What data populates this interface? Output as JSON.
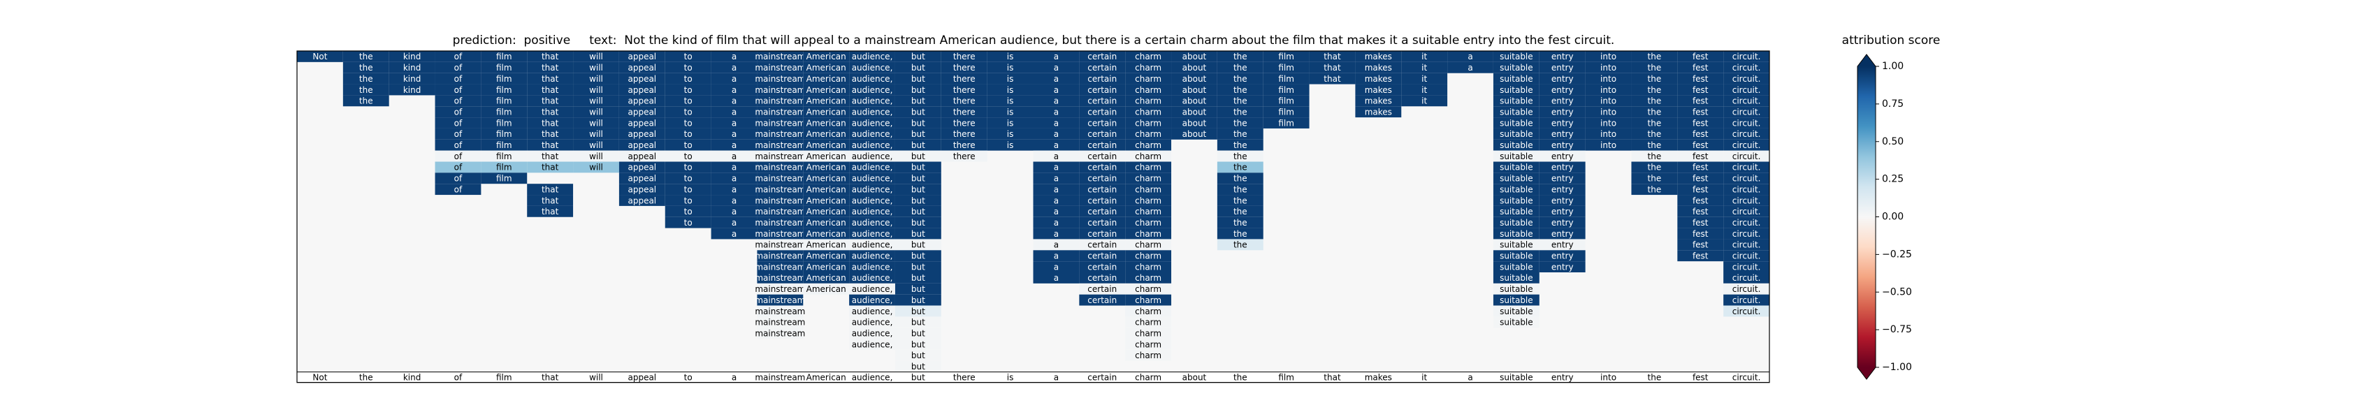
{
  "chart_data": {
    "type": "heatmap",
    "title": "prediction:  positive     text:  Not the kind of film that will appeal to a mainstream American audience, but there is a certain charm about the film that makes it a suitable entry into the fest circuit.",
    "tokens": [
      "Not",
      "the",
      "kind",
      "of",
      "film",
      "that",
      "will",
      "appeal",
      "to",
      "a",
      "mainstream",
      "American",
      "audience,",
      "but",
      "there",
      "is",
      "a",
      "certain",
      "charm",
      "about",
      "the",
      "film",
      "that",
      "makes",
      "it",
      "a",
      "suitable",
      "entry",
      "into",
      "the",
      "fest",
      "circuit."
    ],
    "z": [
      [
        0.95,
        0.95,
        0.95,
        0.95,
        0.95,
        0.95,
        0.95,
        0.95,
        0.95,
        0.95,
        0.95,
        0.95,
        0.95,
        0.95,
        0.95,
        0.95,
        0.95,
        0.95,
        0.95,
        0.95,
        0.95,
        0.95,
        0.95,
        0.95,
        0.95,
        0.95,
        0.95,
        0.95,
        0.95,
        0.95,
        0.95,
        0.95
      ],
      [
        null,
        0.95,
        0.95,
        0.95,
        0.95,
        0.95,
        0.95,
        0.95,
        0.95,
        0.95,
        0.95,
        0.95,
        0.95,
        0.95,
        0.95,
        0.95,
        0.95,
        0.95,
        0.95,
        0.95,
        0.95,
        0.95,
        0.95,
        0.95,
        0.95,
        0.95,
        0.95,
        0.95,
        0.95,
        0.95,
        0.95,
        0.95
      ],
      [
        null,
        0.95,
        0.95,
        0.95,
        0.95,
        0.95,
        0.95,
        0.95,
        0.95,
        0.95,
        0.95,
        0.95,
        0.95,
        0.95,
        0.95,
        0.95,
        0.95,
        0.95,
        0.95,
        0.95,
        0.95,
        0.95,
        0.95,
        0.95,
        0.95,
        null,
        0.95,
        0.95,
        0.95,
        0.95,
        0.95,
        0.95
      ],
      [
        null,
        0.95,
        0.95,
        0.95,
        0.95,
        0.95,
        0.95,
        0.95,
        0.95,
        0.95,
        0.95,
        0.95,
        0.95,
        0.95,
        0.95,
        0.95,
        0.95,
        0.95,
        0.95,
        0.95,
        0.95,
        0.95,
        null,
        0.95,
        0.95,
        null,
        0.95,
        0.95,
        0.95,
        0.95,
        0.95,
        0.95
      ],
      [
        null,
        0.95,
        null,
        0.95,
        0.95,
        0.95,
        0.95,
        0.95,
        0.95,
        0.95,
        0.95,
        0.95,
        0.95,
        0.95,
        0.95,
        0.95,
        0.95,
        0.95,
        0.95,
        0.95,
        0.95,
        0.95,
        null,
        0.95,
        0.95,
        null,
        0.95,
        0.95,
        0.95,
        0.95,
        0.95,
        0.95
      ],
      [
        null,
        null,
        null,
        0.95,
        0.95,
        0.95,
        0.95,
        0.95,
        0.95,
        0.95,
        0.95,
        0.95,
        0.95,
        0.95,
        0.95,
        0.95,
        0.95,
        0.95,
        0.95,
        0.95,
        0.95,
        0.95,
        null,
        0.95,
        null,
        null,
        0.95,
        0.95,
        0.95,
        0.95,
        0.95,
        0.95
      ],
      [
        null,
        null,
        null,
        0.95,
        0.95,
        0.95,
        0.95,
        0.95,
        0.95,
        0.95,
        0.95,
        0.95,
        0.95,
        0.95,
        0.95,
        0.95,
        0.95,
        0.95,
        0.95,
        0.95,
        0.95,
        0.95,
        null,
        null,
        null,
        null,
        0.95,
        0.95,
        0.95,
        0.95,
        0.95,
        0.95
      ],
      [
        null,
        null,
        null,
        0.95,
        0.95,
        0.95,
        0.95,
        0.95,
        0.95,
        0.95,
        0.95,
        0.95,
        0.95,
        0.95,
        0.95,
        0.95,
        0.95,
        0.95,
        0.95,
        0.95,
        0.95,
        null,
        null,
        null,
        null,
        null,
        0.95,
        0.95,
        0.95,
        0.95,
        0.95,
        0.95
      ],
      [
        null,
        null,
        null,
        0.95,
        0.95,
        0.95,
        0.95,
        0.95,
        0.95,
        0.95,
        0.95,
        0.95,
        0.95,
        0.95,
        0.95,
        0.95,
        0.95,
        0.95,
        0.95,
        null,
        0.95,
        null,
        null,
        null,
        null,
        null,
        0.95,
        0.95,
        0.95,
        0.95,
        0.95,
        0.95
      ],
      [
        null,
        null,
        null,
        0.03,
        0.03,
        0.03,
        0.03,
        0.03,
        0.03,
        0.03,
        0.03,
        0.03,
        0.03,
        0.03,
        0.03,
        null,
        0.03,
        0.03,
        0.03,
        null,
        0.03,
        null,
        null,
        null,
        null,
        null,
        0.03,
        0.03,
        null,
        0.03,
        0.03,
        0.03
      ],
      [
        null,
        null,
        null,
        0.4,
        0.4,
        0.4,
        0.4,
        0.95,
        0.95,
        0.95,
        0.95,
        0.95,
        0.95,
        0.95,
        null,
        null,
        0.95,
        0.95,
        0.95,
        null,
        0.4,
        null,
        null,
        null,
        null,
        null,
        0.95,
        0.95,
        null,
        0.95,
        0.95,
        0.95
      ],
      [
        null,
        null,
        null,
        0.95,
        0.95,
        null,
        null,
        0.95,
        0.95,
        0.95,
        0.95,
        0.95,
        0.95,
        0.95,
        null,
        null,
        0.95,
        0.95,
        0.95,
        null,
        0.95,
        null,
        null,
        null,
        null,
        null,
        0.95,
        0.95,
        null,
        0.95,
        0.95,
        0.95
      ],
      [
        null,
        null,
        null,
        0.95,
        null,
        0.95,
        null,
        0.95,
        0.95,
        0.95,
        0.95,
        0.95,
        0.95,
        0.95,
        null,
        null,
        0.95,
        0.95,
        0.95,
        null,
        0.95,
        null,
        null,
        null,
        null,
        null,
        0.95,
        0.95,
        null,
        0.95,
        0.95,
        0.95
      ],
      [
        null,
        null,
        null,
        null,
        null,
        0.95,
        null,
        0.95,
        0.95,
        0.95,
        0.95,
        0.95,
        0.95,
        0.95,
        null,
        null,
        0.95,
        0.95,
        0.95,
        null,
        0.95,
        null,
        null,
        null,
        null,
        null,
        0.95,
        0.95,
        null,
        null,
        0.95,
        0.95
      ],
      [
        null,
        null,
        null,
        null,
        null,
        0.95,
        null,
        null,
        0.95,
        0.95,
        0.95,
        0.95,
        0.95,
        0.95,
        null,
        null,
        0.95,
        0.95,
        0.95,
        null,
        0.95,
        null,
        null,
        null,
        null,
        null,
        0.95,
        0.95,
        null,
        null,
        0.95,
        0.95
      ],
      [
        null,
        null,
        null,
        null,
        null,
        null,
        null,
        null,
        0.95,
        0.95,
        0.95,
        0.95,
        0.95,
        0.95,
        null,
        null,
        0.95,
        0.95,
        0.95,
        null,
        0.95,
        null,
        null,
        null,
        null,
        null,
        0.95,
        0.95,
        null,
        null,
        0.95,
        0.95
      ],
      [
        null,
        null,
        null,
        null,
        null,
        null,
        null,
        null,
        null,
        0.95,
        0.95,
        0.95,
        0.95,
        0.95,
        null,
        null,
        0.95,
        0.95,
        0.95,
        null,
        0.95,
        null,
        null,
        null,
        null,
        null,
        0.95,
        0.95,
        null,
        null,
        0.95,
        0.95
      ],
      [
        null,
        null,
        null,
        null,
        null,
        null,
        null,
        null,
        null,
        null,
        0.03,
        0.03,
        0.03,
        0.03,
        null,
        null,
        0.03,
        0.03,
        0.03,
        null,
        0.15,
        null,
        null,
        null,
        null,
        null,
        0.03,
        0.03,
        null,
        null,
        0.95,
        0.95
      ],
      [
        null,
        null,
        null,
        null,
        null,
        null,
        null,
        null,
        null,
        null,
        0.95,
        0.95,
        0.95,
        0.95,
        null,
        null,
        0.95,
        0.95,
        0.95,
        null,
        null,
        null,
        null,
        null,
        null,
        null,
        0.95,
        0.95,
        null,
        null,
        0.95,
        0.95
      ],
      [
        null,
        null,
        null,
        null,
        null,
        null,
        null,
        null,
        null,
        null,
        0.95,
        0.95,
        0.95,
        0.95,
        null,
        null,
        0.95,
        0.95,
        0.95,
        null,
        null,
        null,
        null,
        null,
        null,
        null,
        0.95,
        0.95,
        null,
        null,
        null,
        0.95
      ],
      [
        null,
        null,
        null,
        null,
        null,
        null,
        null,
        null,
        null,
        null,
        0.95,
        0.95,
        0.95,
        0.95,
        null,
        null,
        0.95,
        0.95,
        0.95,
        null,
        null,
        null,
        null,
        null,
        null,
        null,
        0.95,
        null,
        null,
        null,
        null,
        0.95
      ],
      [
        null,
        null,
        null,
        null,
        null,
        null,
        null,
        null,
        null,
        null,
        0.03,
        0.03,
        0.03,
        0.95,
        null,
        null,
        null,
        0.03,
        0.03,
        null,
        null,
        null,
        null,
        null,
        null,
        null,
        0.03,
        null,
        null,
        null,
        null,
        0.03
      ],
      [
        null,
        null,
        null,
        null,
        null,
        null,
        null,
        null,
        null,
        null,
        0.95,
        null,
        0.95,
        0.95,
        null,
        null,
        null,
        0.95,
        0.95,
        null,
        null,
        null,
        null,
        null,
        null,
        null,
        0.95,
        null,
        null,
        null,
        null,
        0.95
      ],
      [
        null,
        null,
        null,
        null,
        null,
        null,
        null,
        null,
        null,
        null,
        0.03,
        null,
        0.03,
        0.1,
        null,
        null,
        null,
        null,
        0.03,
        null,
        null,
        null,
        null,
        null,
        null,
        null,
        0.03,
        null,
        null,
        null,
        null,
        0.15
      ],
      [
        null,
        null,
        null,
        null,
        null,
        null,
        null,
        null,
        null,
        null,
        0.02,
        null,
        0.02,
        0.02,
        null,
        null,
        null,
        null,
        0.02,
        null,
        null,
        null,
        null,
        null,
        null,
        null,
        0.02,
        null,
        null,
        null,
        null,
        null
      ],
      [
        null,
        null,
        null,
        null,
        null,
        null,
        null,
        null,
        null,
        null,
        0.02,
        null,
        0.02,
        0.02,
        null,
        null,
        null,
        null,
        0.02,
        null,
        null,
        null,
        null,
        null,
        null,
        null,
        null,
        null,
        null,
        null,
        null,
        null
      ],
      [
        null,
        null,
        null,
        null,
        null,
        null,
        null,
        null,
        null,
        null,
        null,
        null,
        0.02,
        0.02,
        null,
        null,
        null,
        null,
        0.02,
        null,
        null,
        null,
        null,
        null,
        null,
        null,
        null,
        null,
        null,
        null,
        null,
        null
      ],
      [
        null,
        null,
        null,
        null,
        null,
        null,
        null,
        null,
        null,
        null,
        null,
        null,
        null,
        0.02,
        null,
        null,
        null,
        null,
        0.02,
        null,
        null,
        null,
        null,
        null,
        null,
        null,
        null,
        null,
        null,
        null,
        null,
        null
      ],
      [
        null,
        null,
        null,
        null,
        null,
        null,
        null,
        null,
        null,
        null,
        null,
        null,
        null,
        0.02,
        null,
        null,
        null,
        null,
        null,
        null,
        null,
        null,
        null,
        null,
        null,
        null,
        null,
        null,
        null,
        null,
        null,
        null
      ]
    ],
    "colorbar_label": "attribution score",
    "zlim": [
      -1,
      1
    ],
    "zticks": [
      {
        "value": 1,
        "label": "1.00"
      },
      {
        "value": 0.75,
        "label": "0.75"
      },
      {
        "value": 0.5,
        "label": "0.50"
      },
      {
        "value": 0.25,
        "label": "0.25"
      },
      {
        "value": 0,
        "label": "0.00"
      },
      {
        "value": -0.25,
        "label": "−0.25"
      },
      {
        "value": -0.5,
        "label": "−0.50"
      },
      {
        "value": -0.75,
        "label": "−0.75"
      },
      {
        "value": -1,
        "label": "−1.00"
      }
    ],
    "colorscale": [
      "#67001f",
      "#b2182b",
      "#d6604d",
      "#f4a582",
      "#fddbc7",
      "#f7f7f7",
      "#d1e5f0",
      "#92c5de",
      "#4393c3",
      "#2166ac",
      "#053061"
    ]
  }
}
